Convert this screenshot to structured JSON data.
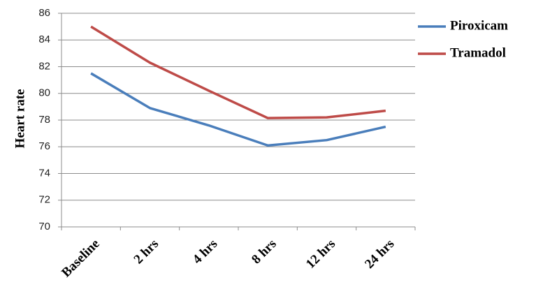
{
  "chart_data": {
    "type": "line",
    "ylabel": "Heart rate",
    "categories": [
      "Baseline",
      "2 hrs",
      "4 hrs",
      "8 hrs",
      "12 hrs",
      "24 hrs"
    ],
    "series": [
      {
        "name": "Piroxicam",
        "color": "#4a7ebb",
        "values": [
          81.5,
          78.9,
          77.6,
          76.1,
          76.5,
          77.5
        ]
      },
      {
        "name": "Tramadol",
        "color": "#be4b48",
        "values": [
          85,
          82.3,
          80.2,
          78.15,
          78.2,
          78.7
        ]
      }
    ],
    "ylim": [
      70,
      86
    ],
    "yticks": [
      70,
      72,
      74,
      76,
      78,
      80,
      82,
      84,
      86
    ],
    "grid": true,
    "legend": "right"
  }
}
